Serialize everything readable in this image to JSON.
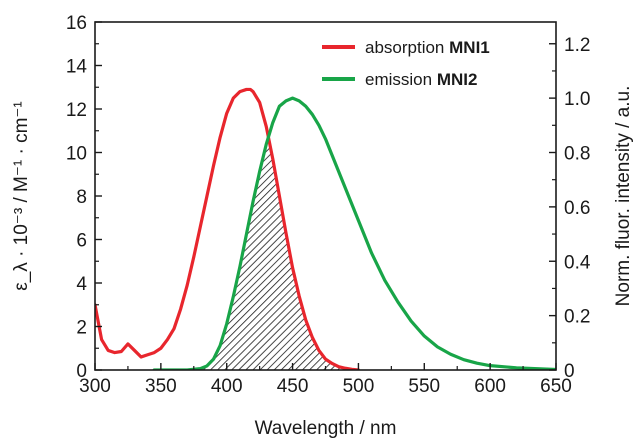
{
  "chart_data": {
    "type": "line",
    "xlabel": "Wavelength / nm",
    "ylabel_left": "ε_λ · 10⁻³ / M⁻¹ · cm⁻¹",
    "ylabel_right": "Norm. fluor. intensity / a.u.",
    "xlim": [
      300,
      650
    ],
    "ylim_left": [
      0,
      16
    ],
    "ylim_right": [
      0,
      1.28
    ],
    "x_ticks": [
      300,
      350,
      400,
      450,
      500,
      550,
      600,
      650
    ],
    "y_left_ticks": [
      0,
      2,
      4,
      6,
      8,
      10,
      12,
      14,
      16
    ],
    "y_right_ticks": [
      "0",
      "0.2",
      "0.4",
      "0.6",
      "0.8",
      "1.0",
      "1.2"
    ],
    "legend_position": "top-right",
    "overlap_region": "hatched",
    "series": [
      {
        "name": "absorption MNI1",
        "name_plain": "absorption ",
        "name_bold": "MNI1",
        "axis": "left",
        "color": "#e8262d",
        "x": [
          300,
          305,
          310,
          315,
          320,
          325,
          330,
          335,
          340,
          345,
          350,
          355,
          360,
          365,
          370,
          375,
          380,
          385,
          390,
          395,
          400,
          405,
          410,
          415,
          418,
          420,
          425,
          430,
          435,
          440,
          445,
          450,
          455,
          460,
          465,
          470,
          475,
          480,
          485,
          490,
          495,
          500
        ],
        "y": [
          3.0,
          1.4,
          0.9,
          0.8,
          0.85,
          1.2,
          0.9,
          0.6,
          0.7,
          0.8,
          1.0,
          1.4,
          1.9,
          2.8,
          3.9,
          5.2,
          6.6,
          8.0,
          9.4,
          10.7,
          11.8,
          12.5,
          12.8,
          12.9,
          12.9,
          12.8,
          12.3,
          11.2,
          9.7,
          8.0,
          6.3,
          4.7,
          3.4,
          2.3,
          1.5,
          0.9,
          0.5,
          0.3,
          0.15,
          0.08,
          0.03,
          0.0
        ]
      },
      {
        "name": "emission MNI2",
        "name_plain": "emission ",
        "name_bold": "MNI2",
        "axis": "right",
        "color": "#18a548",
        "x": [
          345,
          370,
          380,
          385,
          390,
          395,
          400,
          405,
          410,
          415,
          420,
          425,
          430,
          435,
          440,
          445,
          450,
          455,
          460,
          465,
          470,
          475,
          480,
          490,
          500,
          510,
          520,
          530,
          540,
          550,
          560,
          570,
          580,
          590,
          600,
          620,
          650
        ],
        "y": [
          0.0,
          0.0,
          0.005,
          0.015,
          0.04,
          0.09,
          0.17,
          0.27,
          0.38,
          0.5,
          0.62,
          0.73,
          0.83,
          0.91,
          0.97,
          0.99,
          1.0,
          0.99,
          0.97,
          0.94,
          0.9,
          0.85,
          0.79,
          0.67,
          0.55,
          0.43,
          0.33,
          0.25,
          0.18,
          0.125,
          0.085,
          0.058,
          0.038,
          0.025,
          0.016,
          0.008,
          0.002
        ]
      }
    ]
  }
}
